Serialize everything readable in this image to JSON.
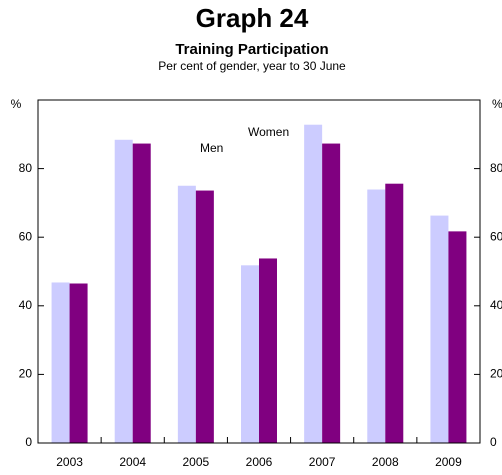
{
  "chart_data": {
    "type": "bar",
    "title": "Graph 24",
    "subtitle": "Training Participation",
    "note": "Per cent of gender, year to 30 June",
    "ylabel": "%",
    "y2label": "%",
    "categories": [
      "2003",
      "2004",
      "2005",
      "2006",
      "2007",
      "2008",
      "2009"
    ],
    "series": [
      {
        "name": "Women",
        "color": "#ccccff",
        "values": [
          46.8,
          88.4,
          75.0,
          51.8,
          92.8,
          73.9,
          66.3
        ]
      },
      {
        "name": "Men",
        "color": "#800080",
        "values": [
          46.5,
          87.3,
          73.6,
          53.8,
          87.3,
          75.6,
          61.7
        ]
      }
    ],
    "ylim": [
      0,
      100
    ],
    "yticks": [
      0,
      20,
      40,
      60,
      80
    ],
    "y2lim": [
      0,
      100
    ],
    "y2ticks": [
      0,
      20,
      40,
      60,
      80
    ],
    "grid": false
  }
}
